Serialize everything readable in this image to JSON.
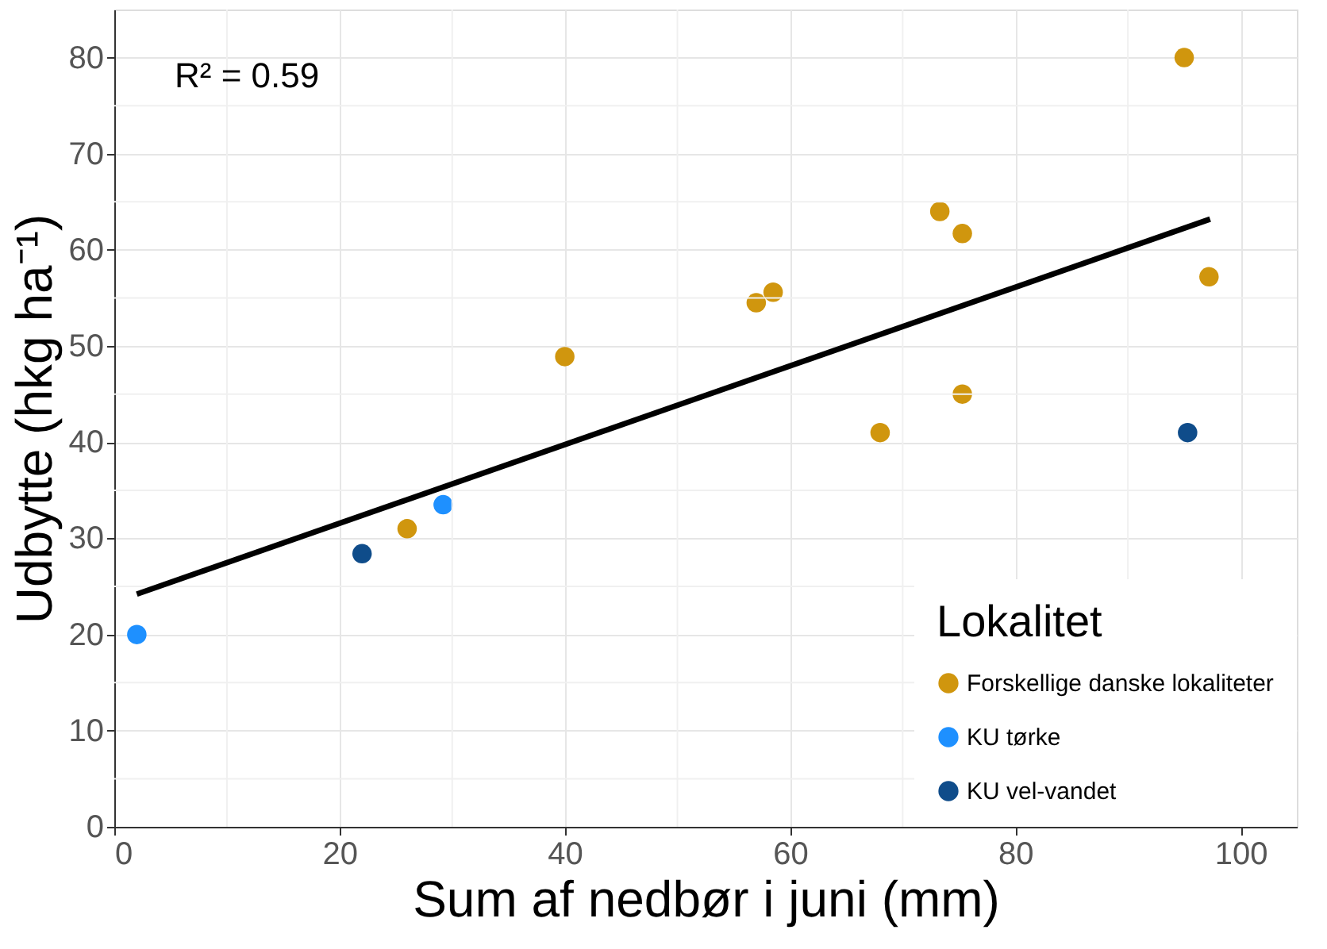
{
  "chart_data": {
    "type": "scatter",
    "xlabel": "Sum af nedbør i juni (mm)",
    "ylabel": "Udbytte (hkg ha⁻¹)",
    "legend_title": "Lokalitet",
    "annotations": [
      "R² = 0.59"
    ],
    "xlim": [
      0,
      105
    ],
    "ylim": [
      0,
      85
    ],
    "xticks": [
      0,
      {
        "value": 10,
        "label": null
      },
      20,
      {
        "value": 30,
        "label": null
      },
      40,
      {
        "value": 50,
        "label": null
      },
      60,
      {
        "value": 70,
        "label": null
      },
      80,
      {
        "value": 90,
        "label": null
      },
      100
    ],
    "yticks": [
      0,
      {
        "value": 5,
        "label": null
      },
      10,
      {
        "value": 15,
        "label": null
      },
      20,
      {
        "value": 25,
        "label": null
      },
      30,
      {
        "value": 35,
        "label": null
      },
      40,
      {
        "value": 45,
        "label": null
      },
      50,
      {
        "value": 55,
        "label": null
      },
      60,
      {
        "value": 65,
        "label": null
      },
      70,
      {
        "value": 75,
        "label": null
      },
      80
    ],
    "grid": true,
    "legend": "bottom right",
    "series": [
      {
        "name": "Forskellige danske lokaliteter",
        "color": "#d0960e",
        "marker": "circle",
        "x": [
          26,
          40,
          57,
          58.5,
          68,
          73.3,
          75.3,
          75.3,
          95,
          97.2
        ],
        "values": [
          31,
          48.9,
          54.5,
          55.6,
          41,
          64,
          61.7,
          45,
          80,
          57.2
        ]
      },
      {
        "name": "KU tørke",
        "color": "#1e90ff",
        "marker": "circle",
        "x": [
          2,
          29.2
        ],
        "values": [
          20,
          33.5
        ]
      },
      {
        "name": "KU vel-vandet",
        "color": "#0f4c8a",
        "marker": "circle",
        "x": [
          22,
          95.3
        ],
        "values": [
          28.4,
          41
        ]
      },
      {
        "type": "line",
        "color": "#000000",
        "x": [
          2,
          97.3
        ],
        "values": [
          24.2,
          63.2
        ],
        "marker": "none"
      }
    ]
  }
}
